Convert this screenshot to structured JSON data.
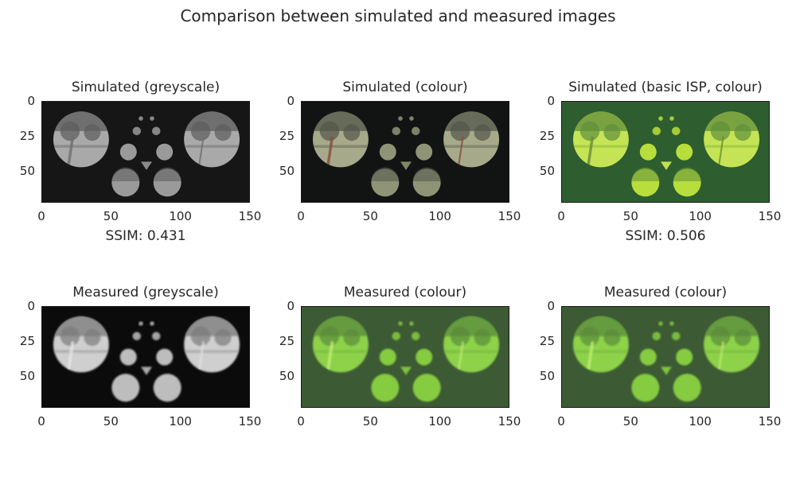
{
  "figure_title": "Comparison between simulated and measured images",
  "panels": [
    {
      "title": "Simulated (greyscale)",
      "style": "sim-grey",
      "metric": "SSIM: 0.431"
    },
    {
      "title": "Simulated (colour)",
      "style": "sim-colour",
      "metric": ""
    },
    {
      "title": "Simulated (basic ISP, colour)",
      "style": "sim-isp",
      "metric": "SSIM: 0.506"
    },
    {
      "title": "Measured (greyscale)",
      "style": "meas-grey",
      "metric": ""
    },
    {
      "title": "Measured (colour)",
      "style": "meas-colour",
      "metric": ""
    },
    {
      "title": "Measured (colour)",
      "style": "meas-colour",
      "metric": ""
    }
  ],
  "axes": {
    "xticks": [
      "0",
      "50",
      "100",
      "150"
    ],
    "yticks": [
      "0",
      "25",
      "50"
    ],
    "xlim": [
      0,
      150
    ],
    "ylim": [
      73,
      0
    ]
  },
  "chart_data": {
    "type": "image-grid",
    "title": "Comparison between simulated and measured images",
    "rows": 2,
    "cols": 3,
    "images": [
      {
        "title": "Simulated (greyscale)",
        "annotation": "SSIM: 0.431"
      },
      {
        "title": "Simulated (colour)"
      },
      {
        "title": "Simulated (basic ISP, colour)",
        "annotation": "SSIM: 0.506"
      },
      {
        "title": "Measured (greyscale)"
      },
      {
        "title": "Measured (colour)"
      },
      {
        "title": "Measured (colour)"
      }
    ],
    "x_ticks": [
      0,
      50,
      100,
      150
    ],
    "y_ticks": [
      0,
      25,
      50
    ],
    "xlim": [
      0,
      150
    ],
    "ylim": [
      73,
      0
    ]
  },
  "palettes": {
    "sim-grey": {
      "bg": "#161616",
      "disc": "#a9a9a9",
      "dark": "#5c5c5c",
      "small": "#9a9a9a",
      "tri": "#8a8a8a",
      "line": "#6e6e6e",
      "stripe": "#7a7a7a"
    },
    "sim-colour": {
      "bg": "#121414",
      "disc": "#a7aa8a",
      "dark": "#52564a",
      "small": "#8f9477",
      "tri": "#7f8666",
      "line": "#8a4b3e",
      "stripe": "#6b6f5c"
    },
    "sim-isp": {
      "bg": "#2e5d2f",
      "disc": "#c5e455",
      "dark": "#5f8e3a",
      "small": "#b8de3c",
      "tri": "#c4e04a",
      "line": "#6a8a3c",
      "stripe": "#98c03e"
    },
    "meas-grey": {
      "bg": "#0b0b0b",
      "disc": "#cfcfcf",
      "dark": "#7a7a7a",
      "small": "#bdbdbd",
      "tri": "#a8a8a8",
      "line": "#e8e8e8",
      "stripe": "#9a9a9a"
    },
    "meas-colour": {
      "bg": "#3c5a34",
      "disc": "#8ed24a",
      "dark": "#5a8a3c",
      "small": "#86cc40",
      "tri": "#7fc23c",
      "line": "#c6f07a",
      "stripe": "#76b440"
    }
  }
}
